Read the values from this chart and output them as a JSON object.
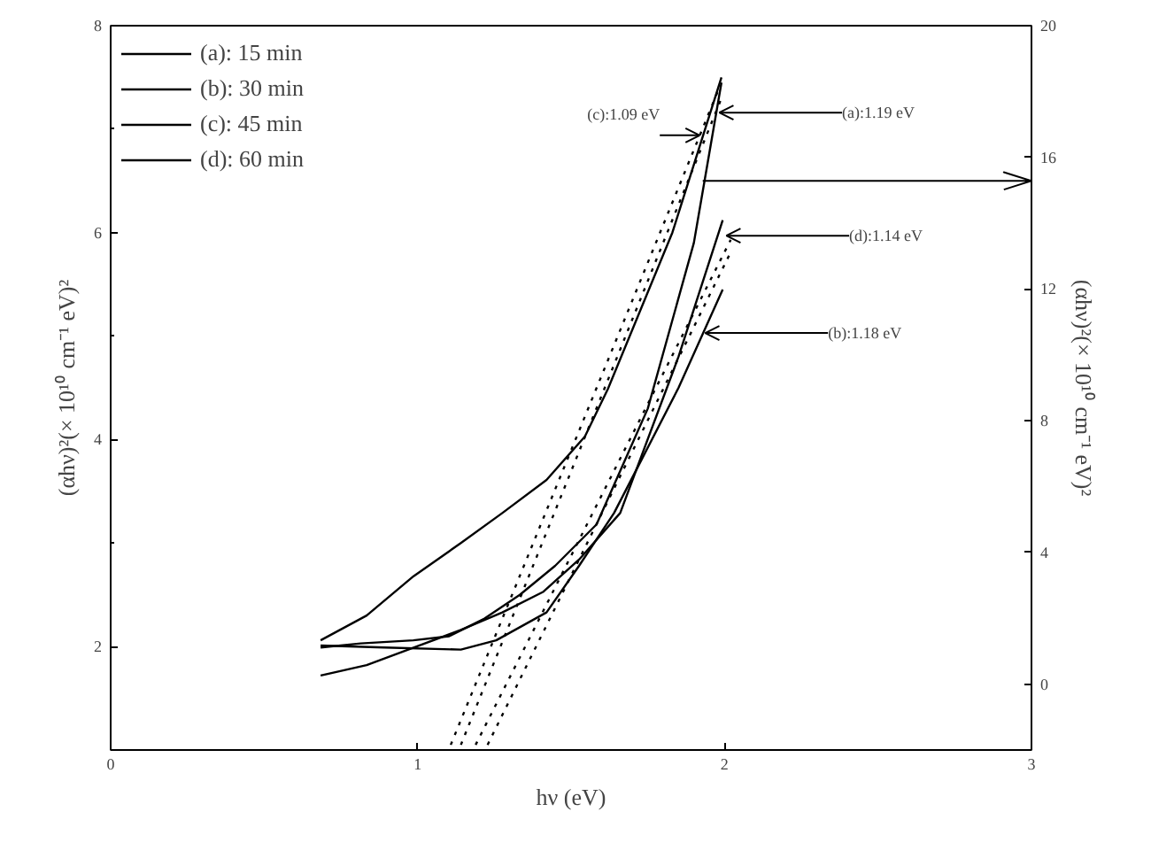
{
  "chart_data": {
    "type": "line",
    "xlabel": "hν (eV)",
    "ylabel": "(αhν)²(× 10¹⁰ cm⁻¹ eV)²",
    "y2label": "(αhν)²(× 10¹⁰ cm⁻¹ eV)²",
    "xlim": [
      0,
      3
    ],
    "xticks": [
      0,
      1,
      2,
      3
    ],
    "ylim": [
      1,
      8
    ],
    "yticks": [
      2,
      4,
      6,
      8
    ],
    "y2lim": [
      -2,
      20
    ],
    "y2ticks": [
      0,
      4,
      8,
      12,
      16,
      20
    ],
    "ref_lines": [
      {
        "axis": "y",
        "value": 6.5
      }
    ],
    "grid": false,
    "legend": "top left",
    "marker": "none",
    "line_style": "solid",
    "series": [
      {
        "name": "(a): 15 min",
        "color": "#000000",
        "x": [
          0.684,
          0.815,
          0.986,
          1.103,
          1.218,
          1.333,
          1.448,
          1.583,
          1.75,
          1.9,
          1.99
        ],
        "values": [
          1.99,
          2.03,
          2.06,
          2.1,
          2.27,
          2.5,
          2.78,
          3.18,
          4.3,
          5.9,
          7.45
        ]
      },
      {
        "name": "(b): 30 min",
        "color": "#000000",
        "x": [
          0.684,
          0.892,
          1.141,
          1.256,
          1.42,
          1.526,
          1.64,
          1.72,
          1.85,
          1.994
        ],
        "values": [
          2.01,
          1.99,
          1.97,
          2.06,
          2.33,
          2.78,
          3.29,
          3.75,
          4.5,
          5.45
        ]
      },
      {
        "name": "(c): 45 min",
        "color": "#000000",
        "x": [
          0.684,
          0.834,
          0.987,
          1.141,
          1.276,
          1.42,
          1.545,
          1.62,
          1.83,
          1.99
        ],
        "values": [
          2.06,
          2.3,
          2.68,
          3.0,
          3.29,
          3.61,
          4.03,
          4.49,
          6.0,
          7.5
        ]
      },
      {
        "name": "(d): 60 min",
        "color": "#000000",
        "x": [
          0.684,
          0.834,
          0.987,
          1.141,
          1.276,
          1.41,
          1.526,
          1.66,
          1.85,
          1.994
        ],
        "values": [
          1.72,
          1.82,
          1.99,
          2.16,
          2.33,
          2.53,
          2.84,
          3.29,
          4.8,
          6.12
        ]
      },
      {
        "type": "line",
        "line_style": "dotted",
        "color": "#000000",
        "x": [
          1.108,
          1.98
        ],
        "values": [
          1.05,
          7.38
        ]
      },
      {
        "type": "line",
        "line_style": "dotted",
        "color": "#000000",
        "x": [
          1.141,
          1.99
        ],
        "values": [
          1.05,
          7.3
        ]
      },
      {
        "type": "line",
        "line_style": "dotted",
        "color": "#000000",
        "x": [
          1.189,
          2.02
        ],
        "values": [
          1.05,
          5.93
        ]
      },
      {
        "type": "line",
        "line_style": "dotted",
        "color": "#000000",
        "x": [
          1.228,
          2.02
        ],
        "values": [
          1.05,
          5.81
        ]
      }
    ],
    "annotations": [
      {
        "text": "(c):1.09 eV",
        "x": 1.919,
        "y": 6.94
      },
      {
        "text": "(a):1.19 eV",
        "x": 1.983,
        "y": 7.16
      },
      {
        "text": "(d):1.14 eV",
        "x": 2.006,
        "y": 5.97
      },
      {
        "text": "(b):1.18 eV",
        "x": 1.937,
        "y": 5.03
      }
    ]
  }
}
